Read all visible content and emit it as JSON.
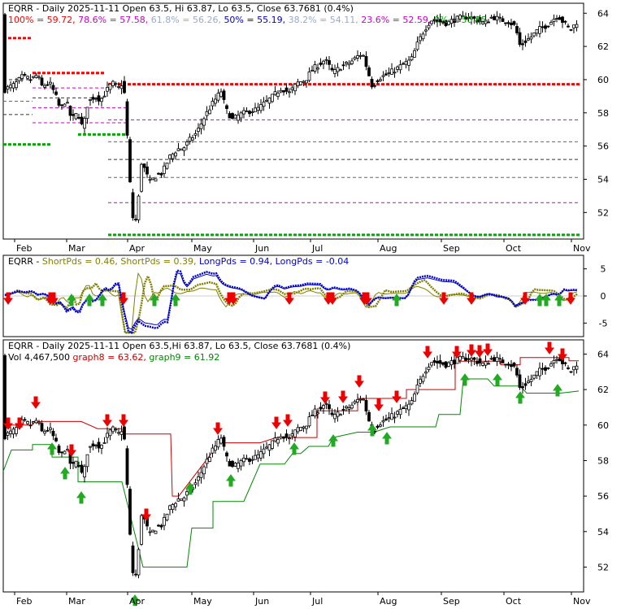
{
  "chart_data": [
    {
      "type": "candlestick",
      "panel": "price-fibonacci",
      "symbol": "EQRR",
      "header_parts": [
        {
          "text": "EQRR - Daily 2025-11-11 Open 63.5, Hi 63.87, Lo 63.5, Close 63.7681 (0.4%)",
          "color": "#000000"
        }
      ],
      "legend_line": [
        {
          "text": "100% = 59.72,",
          "color": "#ff0000"
        },
        {
          "text": "78.6% = 57.58,",
          "color": "#cc00cc"
        },
        {
          "text": "61.8% = 56.26,",
          "color": "#99aacc"
        },
        {
          "text": "50% = 55.19,",
          "color": "#0000cc"
        },
        {
          "text": "38.2% = 54.11,",
          "color": "#99aacc"
        },
        {
          "text": "23.6% = 52.59,",
          "color": "#cc00cc"
        },
        {
          "text": "0% = 50.65",
          "color": "#00aa00"
        }
      ],
      "fib_levels": [
        {
          "label": "100%",
          "value": 59.72,
          "color": "#ff0000"
        },
        {
          "label": "78.6%",
          "value": 57.58,
          "color": "#cc00cc"
        },
        {
          "label": "61.8%",
          "value": 56.26,
          "color": "#666666"
        },
        {
          "label": "50%",
          "value": 55.19,
          "color": "#333333"
        },
        {
          "label": "38.2%",
          "value": 54.11,
          "color": "#666666"
        },
        {
          "label": "23.6%",
          "value": 52.59,
          "color": "#cc00cc"
        },
        {
          "label": "0%",
          "value": 50.65,
          "color": "#00aa00"
        }
      ],
      "y_ticks": [
        "64",
        "62",
        "60",
        "58",
        "56",
        "54",
        "52"
      ],
      "ylim": [
        50.4,
        64.6
      ],
      "x_labels": [
        "Feb",
        "Mar",
        "Apr",
        "May",
        "Jun",
        "Jul",
        "Aug",
        "Sep",
        "Oct",
        "Nov"
      ]
    },
    {
      "type": "line",
      "panel": "oscillator",
      "header_parts": [
        {
          "text": "EQRR -",
          "color": "#000000"
        },
        {
          "text": "ShortPds = 0.46,",
          "color": "#808000"
        },
        {
          "text": "ShortPds = 0.39,",
          "color": "#808000"
        },
        {
          "text": "LongPds = 0.94,",
          "color": "#0000cc"
        },
        {
          "text": "LongPds = -0.04",
          "color": "#0000cc"
        }
      ],
      "y_ticks": [
        "5",
        "0",
        "-5"
      ],
      "ylim": [
        -7.5,
        7.5
      ],
      "series": [
        {
          "name": "ShortPds",
          "color": "#808000"
        },
        {
          "name": "LongPds",
          "color": "#0000cc"
        }
      ]
    },
    {
      "type": "candlestick",
      "panel": "price-stops",
      "header_parts": [
        {
          "text": "EQRR - Daily 2025-11-11 Open 63.5,Hi 63.87, Lo 63.5, Close 63.7681 (0.4%)",
          "color": "#000000"
        }
      ],
      "legend_line": [
        {
          "text": "Vol 4,467,500",
          "color": "#000000"
        },
        {
          "text": "graph8 = 63.62,",
          "color": "#cc0000"
        },
        {
          "text": "graph9 = 61.92",
          "color": "#008800"
        }
      ],
      "series": [
        {
          "name": "graph8",
          "color": "#cc0000"
        },
        {
          "name": "graph9",
          "color": "#008800"
        }
      ],
      "y_ticks": [
        "64",
        "62",
        "60",
        "58",
        "56",
        "54",
        "52"
      ],
      "ylim": [
        50.6,
        64.8
      ],
      "x_labels": [
        "Feb",
        "Mar",
        "Apr",
        "May",
        "Jun",
        "Jul",
        "Aug",
        "Sep",
        "Oct",
        "Nov"
      ]
    }
  ]
}
